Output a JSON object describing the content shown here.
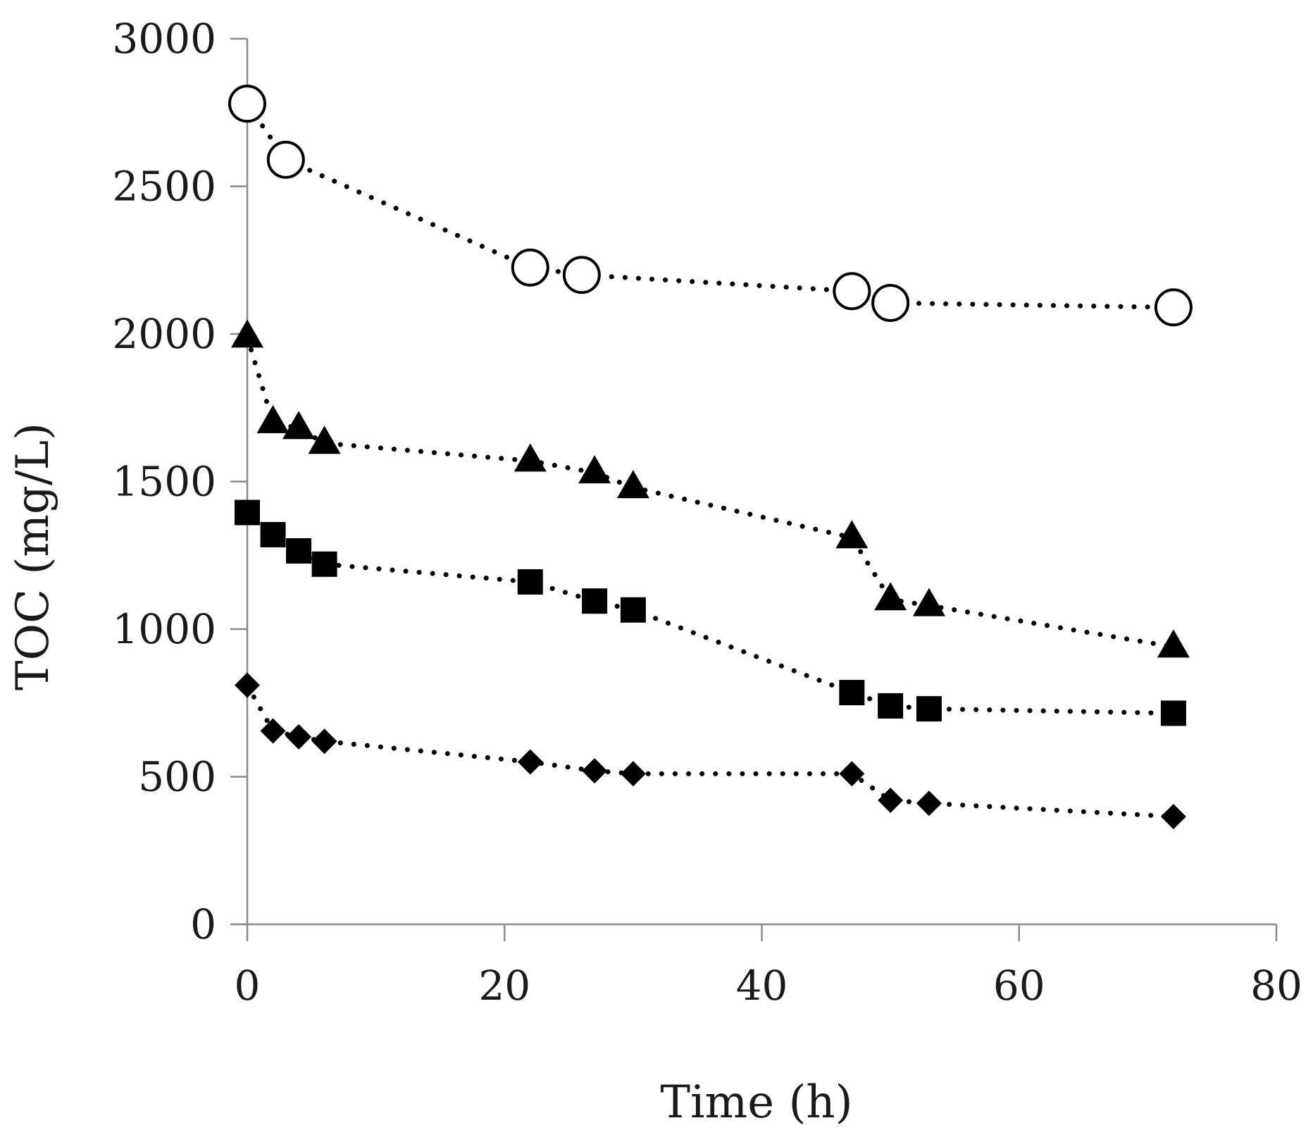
{
  "chart_data": {
    "type": "scatter",
    "title": "",
    "xlabel": "Time (h)",
    "ylabel": "TOC (mg/L)",
    "xlim": [
      0,
      80
    ],
    "ylim": [
      0,
      3000
    ],
    "xticks": [
      0,
      20,
      40,
      60,
      80
    ],
    "yticks": [
      0,
      500,
      1000,
      1500,
      2000,
      2500,
      3000
    ],
    "grid": false,
    "legend": "none",
    "series": [
      {
        "name": "open circle",
        "marker": "circle-open",
        "line": "dotted",
        "x": [
          0,
          3,
          22,
          26,
          47,
          50,
          72
        ],
        "y": [
          2780,
          2590,
          2225,
          2200,
          2145,
          2105,
          2090
        ]
      },
      {
        "name": "filled triangle",
        "marker": "triangle",
        "line": "dotted",
        "x": [
          0,
          2,
          4,
          6,
          22,
          27,
          30,
          47,
          50,
          53,
          72
        ],
        "y": [
          1990,
          1700,
          1680,
          1630,
          1570,
          1530,
          1480,
          1310,
          1100,
          1080,
          940
        ]
      },
      {
        "name": "filled square",
        "marker": "square",
        "line": "dotted",
        "x": [
          0,
          2,
          4,
          6,
          22,
          27,
          30,
          47,
          50,
          53,
          72
        ],
        "y": [
          1395,
          1320,
          1265,
          1220,
          1160,
          1095,
          1065,
          785,
          740,
          730,
          715
        ]
      },
      {
        "name": "filled diamond",
        "marker": "diamond",
        "line": "dotted",
        "x": [
          0,
          2,
          4,
          6,
          22,
          27,
          30,
          47,
          50,
          53,
          72
        ],
        "y": [
          810,
          655,
          635,
          620,
          550,
          520,
          510,
          510,
          420,
          410,
          365
        ]
      }
    ]
  }
}
